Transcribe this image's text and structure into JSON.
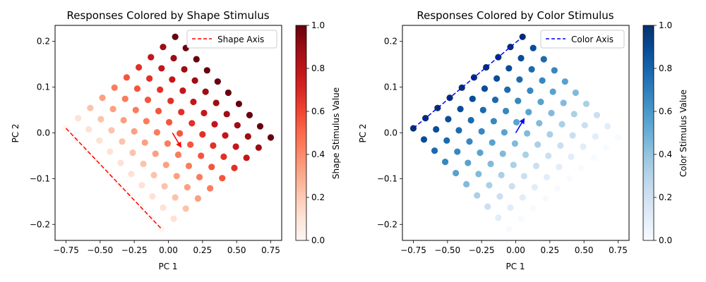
{
  "chart_data": [
    {
      "type": "scatter",
      "title": "Responses Colored by Shape Stimulus",
      "xlabel": "PC 1",
      "ylabel": "PC 2",
      "xlim": [
        -0.83,
        0.83
      ],
      "ylim": [
        -0.235,
        0.235
      ],
      "xticks": [
        "−0.75",
        "−0.50",
        "−0.25",
        "0.00",
        "0.25",
        "0.50",
        "0.75"
      ],
      "yticks": [
        "−0.2",
        "−0.1",
        "0.0",
        "0.1",
        "0.2"
      ],
      "colormap": "Reds",
      "color_by": "shape",
      "colorbar_label": "Shape Stimulus Value",
      "colorbar_ticks": [
        "0.0",
        "0.2",
        "0.4",
        "0.6",
        "0.8",
        "1.0"
      ],
      "grid": "10x10 stimulus grid, shape and color values 0–1 in steps of 1/9",
      "grid_corners": {
        "shape0_color0": [
          -0.05,
          -0.21
        ],
        "shape1_color0": [
          0.75,
          -0.01
        ],
        "shape0_color1": [
          -0.75,
          0.01
        ],
        "shape1_color1": [
          0.05,
          0.21
        ]
      },
      "axis_line": {
        "label": "Shape Axis",
        "color": "#ff0000",
        "style": "dashed",
        "from": [
          -0.75,
          0.01
        ],
        "to": [
          -0.05,
          -0.21
        ]
      },
      "arrow": {
        "color": "#ff0000",
        "from": [
          0.03,
          0.0
        ],
        "to": [
          0.09,
          -0.03
        ]
      },
      "legend": "upper right",
      "grid_lines": false
    },
    {
      "type": "scatter",
      "title": "Responses Colored by Color Stimulus",
      "xlabel": "PC 1",
      "ylabel": "PC 2",
      "xlim": [
        -0.83,
        0.83
      ],
      "ylim": [
        -0.235,
        0.235
      ],
      "xticks": [
        "−0.75",
        "−0.50",
        "−0.25",
        "0.00",
        "0.25",
        "0.50",
        "0.75"
      ],
      "yticks": [
        "−0.2",
        "−0.1",
        "0.0",
        "0.1",
        "0.2"
      ],
      "colormap": "Blues",
      "color_by": "color",
      "colorbar_label": "Color Stimulus Value",
      "colorbar_ticks": [
        "0.0",
        "0.2",
        "0.4",
        "0.6",
        "0.8",
        "1.0"
      ],
      "grid": "10x10 stimulus grid, shape and color values 0–1 in steps of 1/9",
      "grid_corners": {
        "shape0_color0": [
          -0.05,
          -0.21
        ],
        "shape1_color0": [
          0.75,
          -0.01
        ],
        "shape0_color1": [
          -0.75,
          0.01
        ],
        "shape1_color1": [
          0.05,
          0.21
        ]
      },
      "axis_line": {
        "label": "Color Axis",
        "color": "#0000ff",
        "style": "dashed",
        "from": [
          -0.75,
          0.01
        ],
        "to": [
          0.05,
          0.21
        ]
      },
      "arrow": {
        "color": "#0000ff",
        "from": [
          0.0,
          0.0
        ],
        "to": [
          0.06,
          0.03
        ]
      },
      "legend": "upper right",
      "grid_lines": false
    }
  ]
}
